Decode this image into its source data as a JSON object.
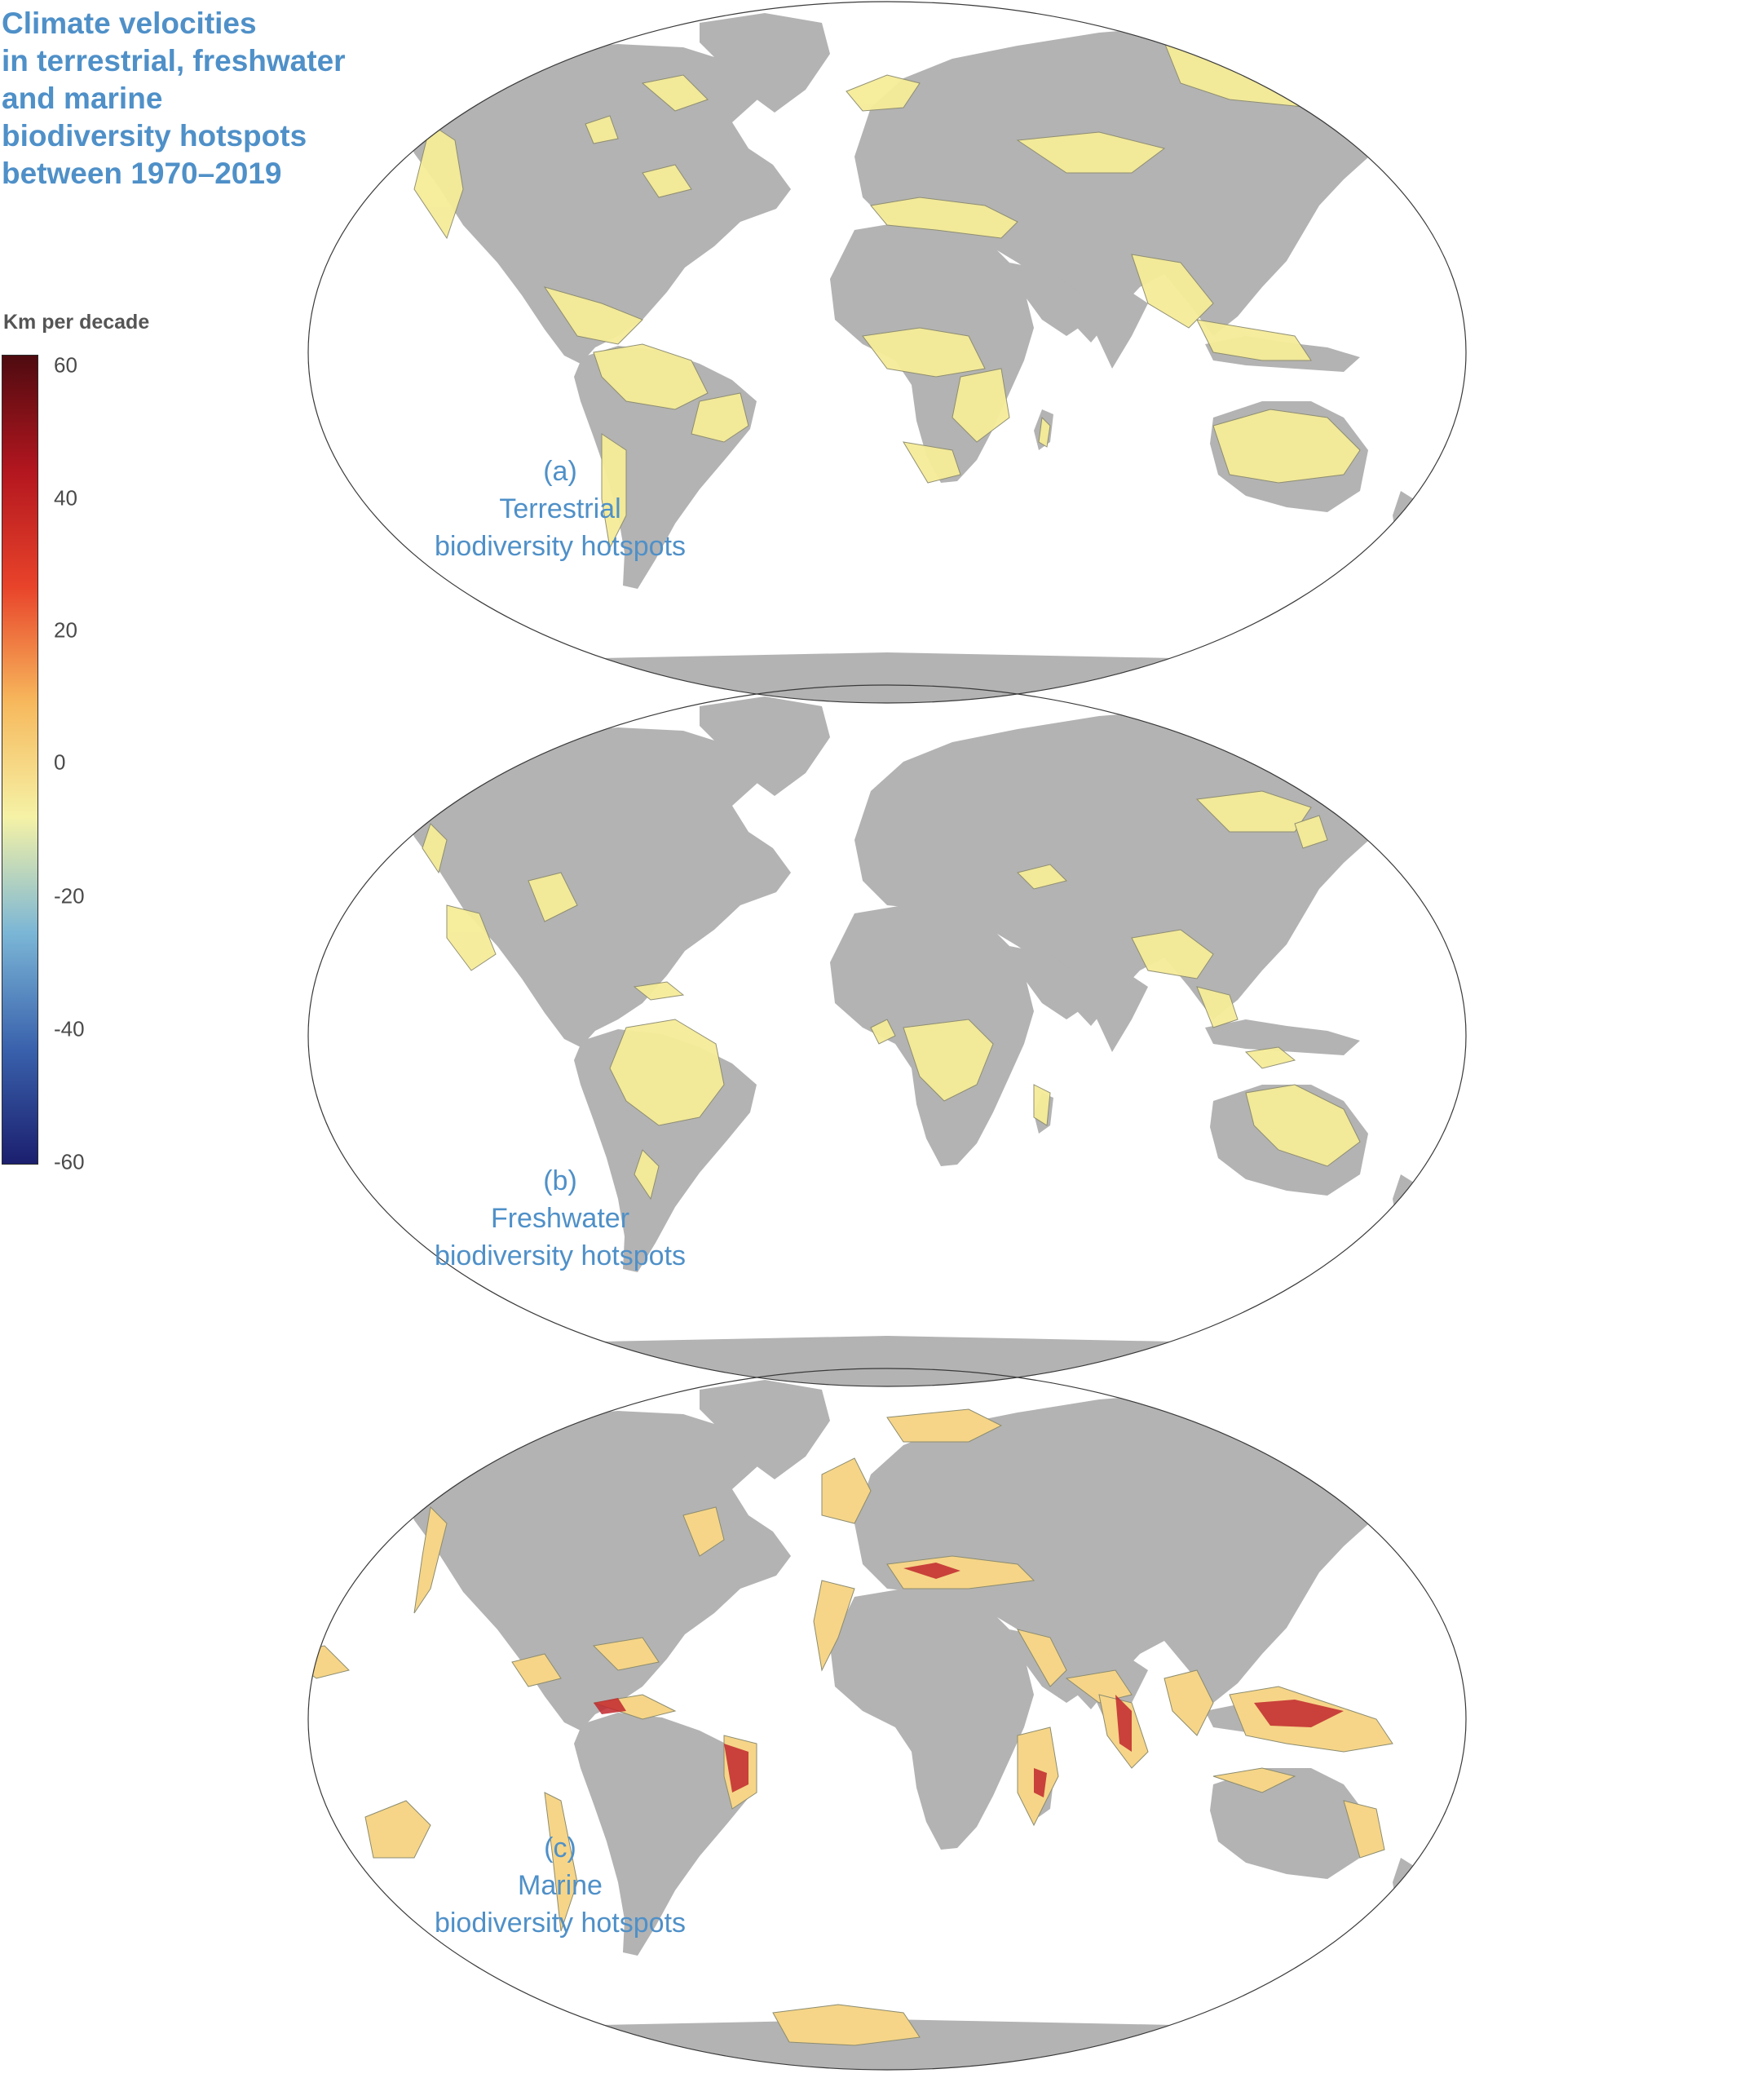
{
  "title_lines": [
    "Climate velocities",
    "in terrestrial, freshwater",
    "and marine",
    "biodiversity hotspots",
    "between 1970–2019"
  ],
  "legend": {
    "title": "Km per decade",
    "ticks": [
      "60",
      "40",
      "20",
      "0",
      "-20",
      "-40",
      "-60"
    ],
    "range": [
      -60,
      60
    ],
    "colors": [
      "#1b1f6e",
      "#3a62ad",
      "#7bb6d6",
      "#f5f2a6",
      "#f7b85c",
      "#e8432a",
      "#b3161f",
      "#4e0b10"
    ]
  },
  "colors": {
    "land": "#b3b3b3",
    "hotspot_low": "#f6ec98",
    "hotspot_mid": "#f4a455",
    "hotspot_high": "#c1272d",
    "label": "#4f90c8"
  },
  "panels": [
    {
      "letter": "(a)",
      "line1": "Terrestrial",
      "line2": "biodiversity hotspots"
    },
    {
      "letter": "(b)",
      "line1": "Freshwater",
      "line2": "biodiversity hotspots"
    },
    {
      "letter": "(c)",
      "line1": "Marine",
      "line2": "biodiversity hotspots"
    }
  ]
}
